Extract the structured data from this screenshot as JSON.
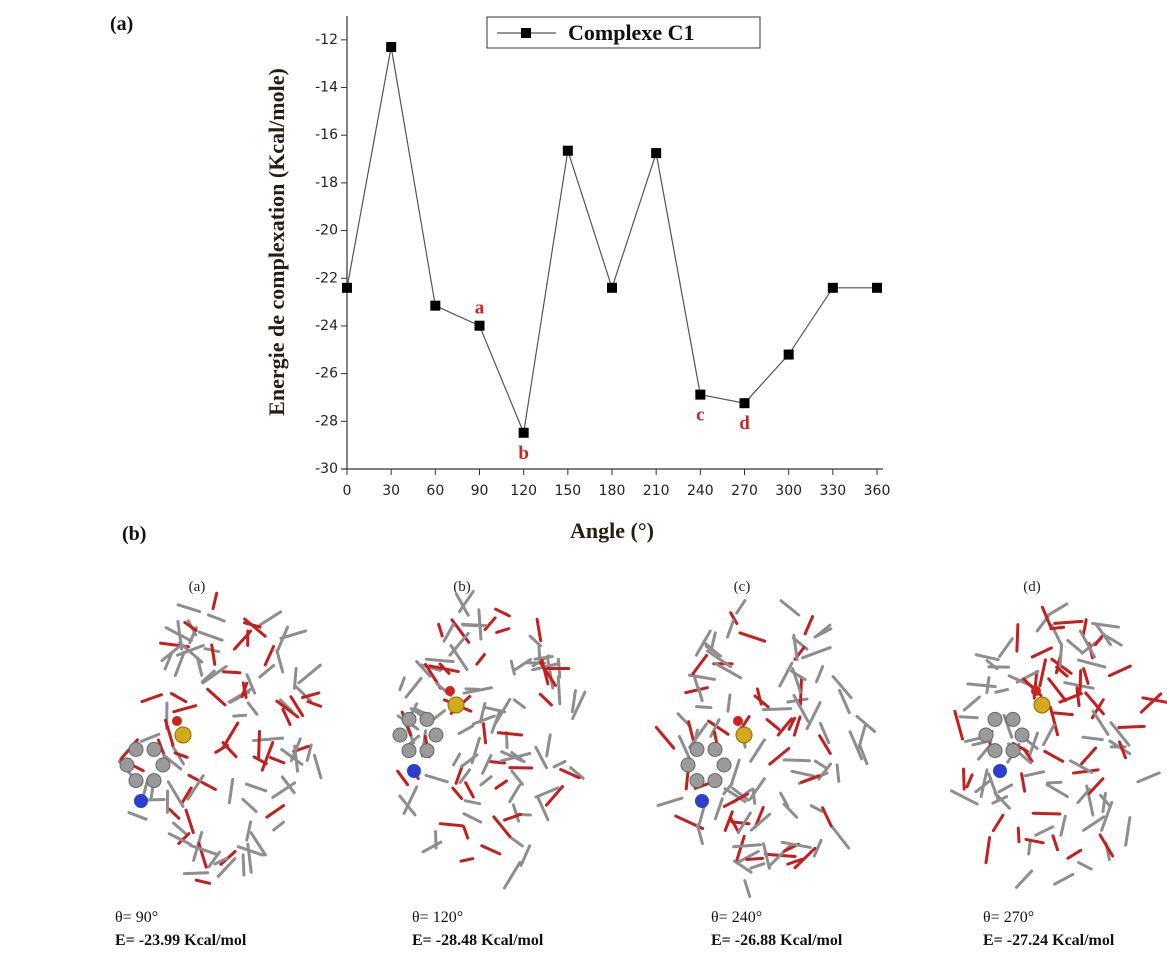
{
  "chart_data": {
    "type": "line",
    "panel_label": "(a)",
    "xlabel": "Angle (°)",
    "ylabel": "Energie de complexation (Kcal/mole)",
    "x": [
      0,
      30,
      60,
      90,
      120,
      150,
      180,
      210,
      240,
      270,
      300,
      330,
      360
    ],
    "series": [
      {
        "name": "Complexe C1",
        "color": "#000000",
        "values": [
          -22.4,
          -12.3,
          -23.15,
          -23.99,
          -28.48,
          -16.65,
          -22.4,
          -16.75,
          -26.88,
          -27.24,
          -25.2,
          -22.4,
          -22.4
        ]
      }
    ],
    "xlim": [
      0,
      360
    ],
    "ylim": [
      -30,
      -11
    ],
    "xticks": [
      0,
      30,
      60,
      90,
      120,
      150,
      180,
      210,
      240,
      270,
      300,
      330,
      360
    ],
    "yticks": [
      -30,
      -28,
      -26,
      -24,
      -22,
      -20,
      -18,
      -16,
      -14,
      -12
    ],
    "annotations": [
      {
        "text": "a",
        "x": 90,
        "y": -23.99
      },
      {
        "text": "b",
        "x": 120,
        "y": -28.48
      },
      {
        "text": "c",
        "x": 240,
        "y": -26.88
      },
      {
        "text": "d",
        "x": 270,
        "y": -27.24
      }
    ],
    "annotation_color": "#d42020",
    "legend": "top"
  },
  "figure_b": {
    "label": "(b)",
    "panels": [
      {
        "label": "(a)",
        "angle": "θ= 90°",
        "energy": "E= -23.99 Kcal/mol"
      },
      {
        "label": "(b)",
        "angle": "θ= 120°",
        "energy": "E= -28.48 Kcal/mol"
      },
      {
        "label": "(c)",
        "angle": "θ= 240°",
        "energy": "E= -26.88 Kcal/mol"
      },
      {
        "label": "(d)",
        "angle": "θ= 270°",
        "energy": "E= -27.24 Kcal/mol"
      }
    ]
  }
}
